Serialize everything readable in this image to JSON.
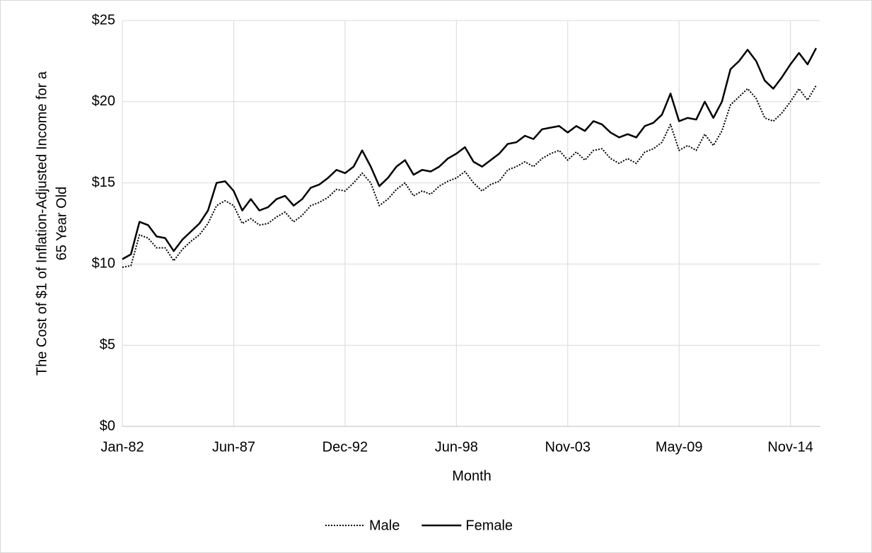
{
  "chart_data": {
    "type": "line",
    "x_label": "Month",
    "y_label_lines": [
      "The Cost of $1 of Inflation-Adjusted Income for a",
      "65 Year Old"
    ],
    "categories": [
      "Jan-82",
      null,
      null,
      null,
      null,
      null,
      null,
      null,
      null,
      null,
      null,
      null,
      null,
      "Jun-87",
      null,
      null,
      null,
      null,
      null,
      null,
      null,
      null,
      null,
      null,
      null,
      null,
      "Dec-92",
      null,
      null,
      null,
      null,
      null,
      null,
      null,
      null,
      null,
      null,
      null,
      null,
      "Jun-98",
      null,
      null,
      null,
      null,
      null,
      null,
      null,
      null,
      null,
      null,
      null,
      null,
      "Nov-03",
      null,
      null,
      null,
      null,
      null,
      null,
      null,
      null,
      null,
      null,
      null,
      null,
      "May-09",
      null,
      null,
      null,
      null,
      null,
      null,
      null,
      null,
      null,
      null,
      null,
      null,
      "Nov-14",
      null,
      null,
      null
    ],
    "series": [
      {
        "name": "Male",
        "color": "#000000",
        "style": "dotted",
        "values": [
          9.8,
          9.9,
          11.8,
          11.6,
          11.0,
          11.0,
          10.2,
          10.9,
          11.4,
          11.8,
          12.5,
          13.6,
          13.9,
          13.6,
          12.5,
          12.8,
          12.4,
          12.5,
          12.9,
          13.2,
          12.6,
          13.0,
          13.6,
          13.8,
          14.1,
          14.6,
          14.5,
          15.0,
          15.6,
          15.0,
          13.6,
          14.0,
          14.6,
          15.0,
          14.2,
          14.5,
          14.3,
          14.8,
          15.1,
          15.3,
          15.7,
          15.0,
          14.5,
          14.9,
          15.1,
          15.8,
          16.0,
          16.3,
          16.0,
          16.5,
          16.8,
          17.0,
          16.4,
          16.9,
          16.4,
          17.0,
          17.1,
          16.5,
          16.2,
          16.5,
          16.2,
          16.9,
          17.1,
          17.5,
          18.6,
          17.0,
          17.3,
          17.0,
          18.0,
          17.3,
          18.2,
          19.8,
          20.3,
          20.8,
          20.2,
          19.0,
          18.8,
          19.3,
          20.0,
          20.8,
          20.1,
          21.0
        ]
      },
      {
        "name": "Female",
        "color": "#000000",
        "style": "solid",
        "values": [
          10.3,
          10.6,
          12.6,
          12.4,
          11.7,
          11.6,
          10.8,
          11.5,
          12.0,
          12.5,
          13.3,
          15.0,
          15.1,
          14.5,
          13.3,
          14.0,
          13.3,
          13.5,
          14.0,
          14.2,
          13.6,
          14.0,
          14.7,
          14.9,
          15.3,
          15.8,
          15.6,
          16.0,
          17.0,
          16.0,
          14.8,
          15.3,
          16.0,
          16.4,
          15.5,
          15.8,
          15.7,
          16.0,
          16.5,
          16.8,
          17.2,
          16.3,
          16.0,
          16.4,
          16.8,
          17.4,
          17.5,
          17.9,
          17.7,
          18.3,
          18.4,
          18.5,
          18.1,
          18.5,
          18.2,
          18.8,
          18.6,
          18.1,
          17.8,
          18.0,
          17.8,
          18.5,
          18.7,
          19.2,
          20.5,
          18.8,
          19.0,
          18.9,
          20.0,
          19.0,
          20.0,
          22.0,
          22.5,
          23.2,
          22.5,
          21.3,
          20.8,
          21.5,
          22.3,
          23.0,
          22.3,
          23.3
        ]
      }
    ],
    "ylim": [
      0,
      25
    ],
    "yticks": [
      {
        "value": 0,
        "label": "$0"
      },
      {
        "value": 5,
        "label": "$5"
      },
      {
        "value": 10,
        "label": "$10"
      },
      {
        "value": 15,
        "label": "$15"
      },
      {
        "value": 20,
        "label": "$20"
      },
      {
        "value": 25,
        "label": "$25"
      }
    ],
    "grid": true,
    "legend": "bottom"
  }
}
